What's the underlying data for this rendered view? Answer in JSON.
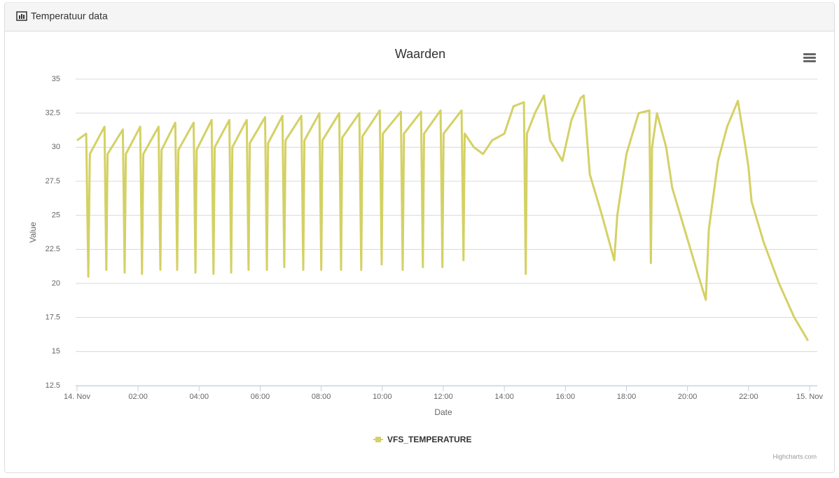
{
  "panel_title": "Temperatuur data",
  "chart_data": {
    "type": "line",
    "title": "Waarden",
    "x_label": "Date",
    "y_label": "Value",
    "credits": "Highcharts.com",
    "xlim": [
      0,
      24
    ],
    "ylim": [
      12.5,
      35
    ],
    "xticks": [
      {
        "value": 0,
        "label": "14. Nov"
      },
      {
        "value": 2,
        "label": "02:00"
      },
      {
        "value": 4,
        "label": "04:00"
      },
      {
        "value": 6,
        "label": "06:00"
      },
      {
        "value": 8,
        "label": "08:00"
      },
      {
        "value": 10,
        "label": "10:00"
      },
      {
        "value": 12,
        "label": "12:00"
      },
      {
        "value": 14,
        "label": "14:00"
      },
      {
        "value": 16,
        "label": "16:00"
      },
      {
        "value": 18,
        "label": "18:00"
      },
      {
        "value": 20,
        "label": "20:00"
      },
      {
        "value": 22,
        "label": "22:00"
      },
      {
        "value": 24,
        "label": "15. Nov"
      }
    ],
    "yticks": [
      12.5,
      15,
      17.5,
      20,
      22.5,
      25,
      27.5,
      30,
      32.5,
      35
    ],
    "grid": true,
    "x": [
      0.0,
      0.3,
      0.37,
      0.42,
      0.9,
      0.96,
      1.0,
      1.5,
      1.56,
      1.6,
      2.07,
      2.13,
      2.17,
      2.67,
      2.73,
      2.77,
      3.22,
      3.28,
      3.32,
      3.82,
      3.88,
      3.92,
      4.41,
      4.47,
      4.51,
      4.99,
      5.05,
      5.09,
      5.56,
      5.62,
      5.66,
      6.16,
      6.22,
      6.26,
      6.73,
      6.79,
      6.83,
      7.35,
      7.41,
      7.45,
      7.94,
      8.0,
      8.04,
      8.59,
      8.65,
      8.69,
      9.25,
      9.31,
      9.35,
      9.92,
      9.98,
      10.02,
      10.61,
      10.67,
      10.71,
      11.27,
      11.33,
      11.37,
      11.91,
      11.97,
      12.01,
      12.6,
      12.66,
      12.7,
      13.0,
      13.3,
      13.6,
      14.0,
      14.3,
      14.64,
      14.7,
      14.74,
      15.0,
      15.3,
      15.5,
      15.9,
      16.2,
      16.5,
      16.6,
      16.8,
      17.2,
      17.6,
      17.7,
      18.0,
      18.4,
      18.75,
      18.8,
      18.84,
      19.0,
      19.3,
      19.5,
      19.9,
      20.3,
      20.6,
      20.7,
      21.0,
      21.3,
      21.65,
      21.9,
      22.0,
      22.1,
      22.5,
      23.0,
      23.5,
      23.95
    ],
    "series": [
      {
        "name": "VFS_TEMPERATURE",
        "color": "#d4d165",
        "values": [
          30.5,
          31,
          20.5,
          29.5,
          31.5,
          21,
          29.5,
          31.3,
          20.8,
          29.5,
          31.5,
          20.7,
          29.5,
          31.5,
          21,
          29.8,
          31.8,
          21,
          29.8,
          31.8,
          20.8,
          29.8,
          32,
          20.7,
          30,
          32,
          20.8,
          30,
          32,
          21,
          30.3,
          32.2,
          21,
          30.3,
          32.3,
          21.2,
          30.5,
          32.3,
          21,
          30.5,
          32.5,
          21,
          30.5,
          32.5,
          21,
          30.7,
          32.5,
          21,
          30.8,
          32.7,
          21.4,
          31,
          32.6,
          21,
          31,
          32.6,
          21.2,
          31,
          32.7,
          21.2,
          31,
          32.7,
          21.7,
          31,
          30,
          29.5,
          30.5,
          31,
          33,
          33.3,
          20.7,
          31,
          32.5,
          33.8,
          30.5,
          29,
          32,
          33.6,
          33.8,
          28,
          25,
          21.7,
          25,
          29.5,
          32.5,
          32.7,
          21.5,
          30,
          32.5,
          30,
          27,
          24,
          21,
          18.8,
          24,
          29,
          31.5,
          33.4,
          30,
          28.5,
          26,
          23,
          20,
          17.5,
          15.8
        ]
      }
    ]
  }
}
